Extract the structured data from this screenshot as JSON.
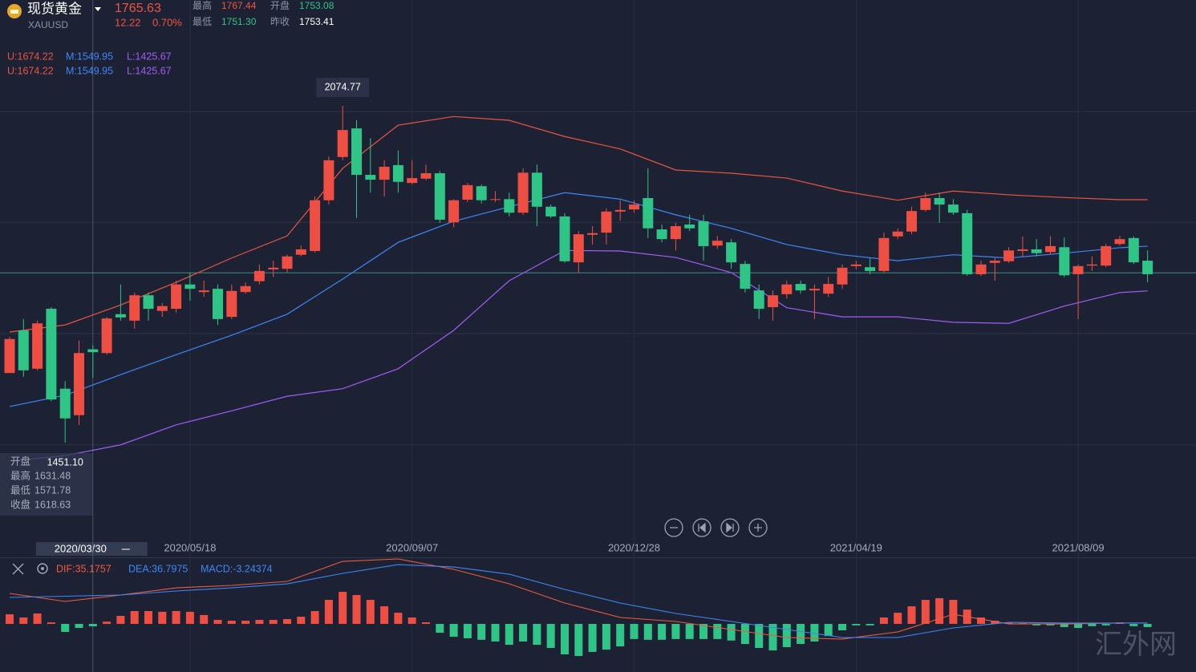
{
  "header": {
    "name": "现货黄金",
    "symbol": "XAUUSD",
    "price": 1765.63,
    "change": 12.22,
    "change_pct": "0.70%",
    "stats": [
      {
        "label": "最高",
        "value": "1767.44"
      },
      {
        "label": "开盘",
        "value": "1753.08"
      },
      {
        "label": "最低",
        "value": "1751.30"
      },
      {
        "label": "昨收",
        "value": "1753.41"
      }
    ]
  },
  "watermark": "汇外网",
  "chart_data": [
    {
      "type": "candlestick",
      "categories": [
        null,
        null,
        null,
        null,
        null,
        null,
        "2020/03/30",
        null,
        null,
        null,
        null,
        null,
        null,
        "2020/05/18",
        null,
        null,
        null,
        null,
        null,
        null,
        null,
        null,
        null,
        null,
        null,
        null,
        null,
        null,
        null,
        "2020/09/07",
        null,
        null,
        null,
        null,
        null,
        null,
        null,
        null,
        null,
        null,
        null,
        null,
        null,
        null,
        null,
        "2020/12/28",
        null,
        null,
        null,
        null,
        null,
        null,
        null,
        null,
        null,
        null,
        null,
        null,
        null,
        null,
        null,
        "2021/04/19",
        null,
        null,
        null,
        null,
        null,
        null,
        null,
        null,
        null,
        null,
        null,
        null,
        null,
        null,
        null,
        "2021/08/09",
        null,
        null,
        null,
        null,
        null
      ],
      "open": [
        1580,
        1659,
        1588,
        1699,
        1551,
        1502,
        1624,
        1617,
        1689,
        1677,
        1724,
        1695,
        1699,
        1744,
        1730,
        1736,
        1684,
        1730,
        1750,
        1772,
        1773,
        1799,
        1806,
        1900,
        1980,
        2033,
        1947,
        1938,
        1965,
        1932,
        1940,
        1950,
        1859,
        1901,
        1926,
        1901,
        1902,
        1877,
        1951,
        1888,
        1870,
        1785,
        1836,
        1840,
        1879,
        1883,
        1904,
        1846,
        1828,
        1855,
        1861,
        1816,
        1822,
        1782,
        1733,
        1702,
        1726,
        1745,
        1733,
        1727,
        1744,
        1778,
        1776,
        1769,
        1833,
        1842,
        1882,
        1904,
        1892,
        1876,
        1763,
        1784,
        1787,
        1806,
        1809,
        1804,
        1813,
        1763,
        1779,
        1779,
        1819,
        1830,
        1788
      ],
      "high": [
        1647,
        1680,
        1677,
        1702,
        1565,
        1640,
        1631.48,
        1684,
        1744,
        1729,
        1729,
        1710,
        1751,
        1766,
        1751,
        1744,
        1744,
        1748,
        1781,
        1788,
        1799,
        1816,
        1907,
        1981,
        2074.77,
        2048,
        2015,
        1974,
        1992,
        1974,
        1966,
        1954,
        1902,
        1932,
        1929,
        1917,
        1914,
        1959,
        1966,
        1892,
        1876,
        1843,
        1852,
        1885,
        1900,
        1900,
        1959,
        1855,
        1858,
        1873,
        1873,
        1834,
        1828,
        1788,
        1744,
        1733,
        1751,
        1751,
        1744,
        1758,
        1781,
        1788,
        1793,
        1840,
        1848,
        1888,
        1914,
        1914,
        1902,
        1882,
        1788,
        1793,
        1813,
        1833,
        1828,
        1833,
        1831,
        1781,
        1796,
        1819,
        1834,
        1833,
        1807
      ],
      "low": [
        1580,
        1573,
        1585,
        1528,
        1451.1,
        1484,
        1571.78,
        1614,
        1677,
        1662,
        1677,
        1684,
        1692,
        1714,
        1721,
        1669,
        1680,
        1727,
        1744,
        1758,
        1766,
        1796,
        1803,
        1892,
        1974,
        1867,
        1914,
        1907,
        1914,
        1929,
        1937,
        1858,
        1850,
        1897,
        1894,
        1897,
        1870,
        1873,
        1852,
        1867,
        1784,
        1766,
        1818,
        1818,
        1862,
        1877,
        1830,
        1822,
        1807,
        1843,
        1788,
        1810,
        1773,
        1729,
        1680,
        1677,
        1718,
        1727,
        1680,
        1721,
        1736,
        1772,
        1763,
        1766,
        1828,
        1837,
        1879,
        1858,
        1873,
        1760,
        1760,
        1751,
        1784,
        1796,
        1796,
        1799,
        1758,
        1680,
        1769,
        1776,
        1816,
        1782,
        1748
      ],
      "close": [
        1643,
        1585,
        1672,
        1531,
        1496,
        1617,
        1618.63,
        1681,
        1683,
        1724,
        1699,
        1704,
        1744,
        1736,
        1733,
        1680,
        1732,
        1741,
        1769,
        1775,
        1796,
        1809,
        1900,
        1974,
        2030,
        1947,
        1938,
        1962,
        1934,
        1941,
        1950,
        1864,
        1900,
        1928,
        1900,
        1902,
        1877,
        1951,
        1888,
        1870,
        1787,
        1837,
        1839,
        1879,
        1882,
        1892,
        1848,
        1828,
        1852,
        1848,
        1815,
        1825,
        1785,
        1736,
        1699,
        1724,
        1744,
        1733,
        1736,
        1745,
        1775,
        1781,
        1769,
        1830,
        1842,
        1880,
        1904,
        1892,
        1877,
        1763,
        1781,
        1788,
        1807,
        1809,
        1802,
        1815,
        1761,
        1778,
        1781,
        1815,
        1828,
        1785,
        1763
      ],
      "up_color": "#ef4f43",
      "down_color": "#2fc587",
      "ylim": [
        1268.4,
        2270.8
      ],
      "yticks": [
        2064,
        1859,
        1653,
        1447
      ],
      "grid": true,
      "extreme_labels": [
        "2074.77",
        "1451.10"
      ],
      "tooltip_labels": [
        "开盘",
        "最高",
        "最低",
        "收盘"
      ],
      "bands": {
        "x": [
          0,
          4,
          8,
          12,
          16,
          20,
          24,
          28,
          32,
          36,
          40,
          44,
          48,
          52,
          56,
          60,
          64,
          68,
          72,
          76,
          80,
          82
        ],
        "series": [
          {
            "name": "U:1674.22",
            "color": "#e8553f",
            "values": [
              1656,
              1669,
              1706,
              1748,
              1793,
              1834,
              1959,
              2039,
              2055,
              2048,
              2018,
              1995,
              1956,
              1950,
              1941,
              1917,
              1900,
              1917,
              1910,
              1905,
              1901,
              1901
            ]
          },
          {
            "name": "M:1549.95",
            "color": "#3f86f5",
            "values": [
              1518,
              1539,
              1577,
              1614,
              1650,
              1689,
              1754,
              1822,
              1861,
              1888,
              1914,
              1902,
              1873,
              1848,
              1818,
              1799,
              1788,
              1799,
              1793,
              1802,
              1812,
              1815
            ]
          },
          {
            "name": "L:1425.67",
            "color": "#a25cf5",
            "values": [
              1417,
              1427,
              1447,
              1484,
              1510,
              1537,
              1551,
              1588,
              1659,
              1751,
              1807,
              1806,
              1794,
              1766,
              1701,
              1684,
              1684,
              1674,
              1672,
              1704,
              1729,
              1732
            ]
          }
        ]
      }
    },
    {
      "type": "macd",
      "ylim": [
        -63.6,
        85.9
      ],
      "up_color": "#ef4f43",
      "down_color": "#2fc587",
      "histogram": {
        "name": "MACD:-3.24374",
        "color": "#3f86f5",
        "values": [
          12.7,
          8.5,
          13.8,
          2,
          -10.6,
          -5.3,
          -3.2,
          3,
          10.6,
          17,
          17,
          16,
          17,
          16,
          11.7,
          5.3,
          4.2,
          4.2,
          5.3,
          5.3,
          6.4,
          9.5,
          17,
          31.8,
          42.4,
          38.2,
          31.8,
          23.3,
          14.8,
          8.5,
          2.1,
          -11.7,
          -17,
          -19,
          -21,
          -23.3,
          -27.6,
          -23.3,
          -27.6,
          -31.8,
          -40.3,
          -42.4,
          -37,
          -34,
          -29.7,
          -20,
          -21,
          -21,
          -20,
          -20,
          -20,
          -20,
          -22,
          -26.5,
          -31.8,
          -35,
          -30.7,
          -26.5,
          -23.3,
          -16,
          -8.5,
          -2,
          -2,
          8.5,
          14.8,
          23.3,
          31.8,
          34,
          31.8,
          19,
          8.5,
          4.2,
          2,
          1,
          -2,
          -2,
          -4.2,
          -5.3,
          -3,
          -2,
          2,
          -3,
          -4.2
        ]
      },
      "x": [
        0,
        4,
        8,
        12,
        16,
        20,
        24,
        28,
        32,
        36,
        40,
        44,
        48,
        52,
        56,
        60,
        64,
        68,
        72,
        76,
        80,
        82
      ],
      "series": [
        {
          "name": "DIF:35.1757",
          "color": "#ef5a3c",
          "values": [
            40.3,
            29.7,
            38.2,
            47.7,
            50.9,
            56.2,
            82.7,
            85.9,
            72.1,
            53,
            27.6,
            8.5,
            3.2,
            -7.4,
            -18,
            -20.1,
            -10.6,
            12.7,
            0,
            0,
            1.1,
            1.1
          ]
        },
        {
          "name": "DEA:36.7975",
          "color": "#3f86f5",
          "values": [
            35,
            36.6,
            38.2,
            43.5,
            47.7,
            53,
            66.8,
            78.4,
            75.2,
            65.7,
            45.6,
            27.6,
            13.8,
            3.2,
            -7.4,
            -18,
            -18,
            -5.3,
            2.1,
            1.1,
            1.1,
            1.1
          ]
        }
      ]
    }
  ]
}
